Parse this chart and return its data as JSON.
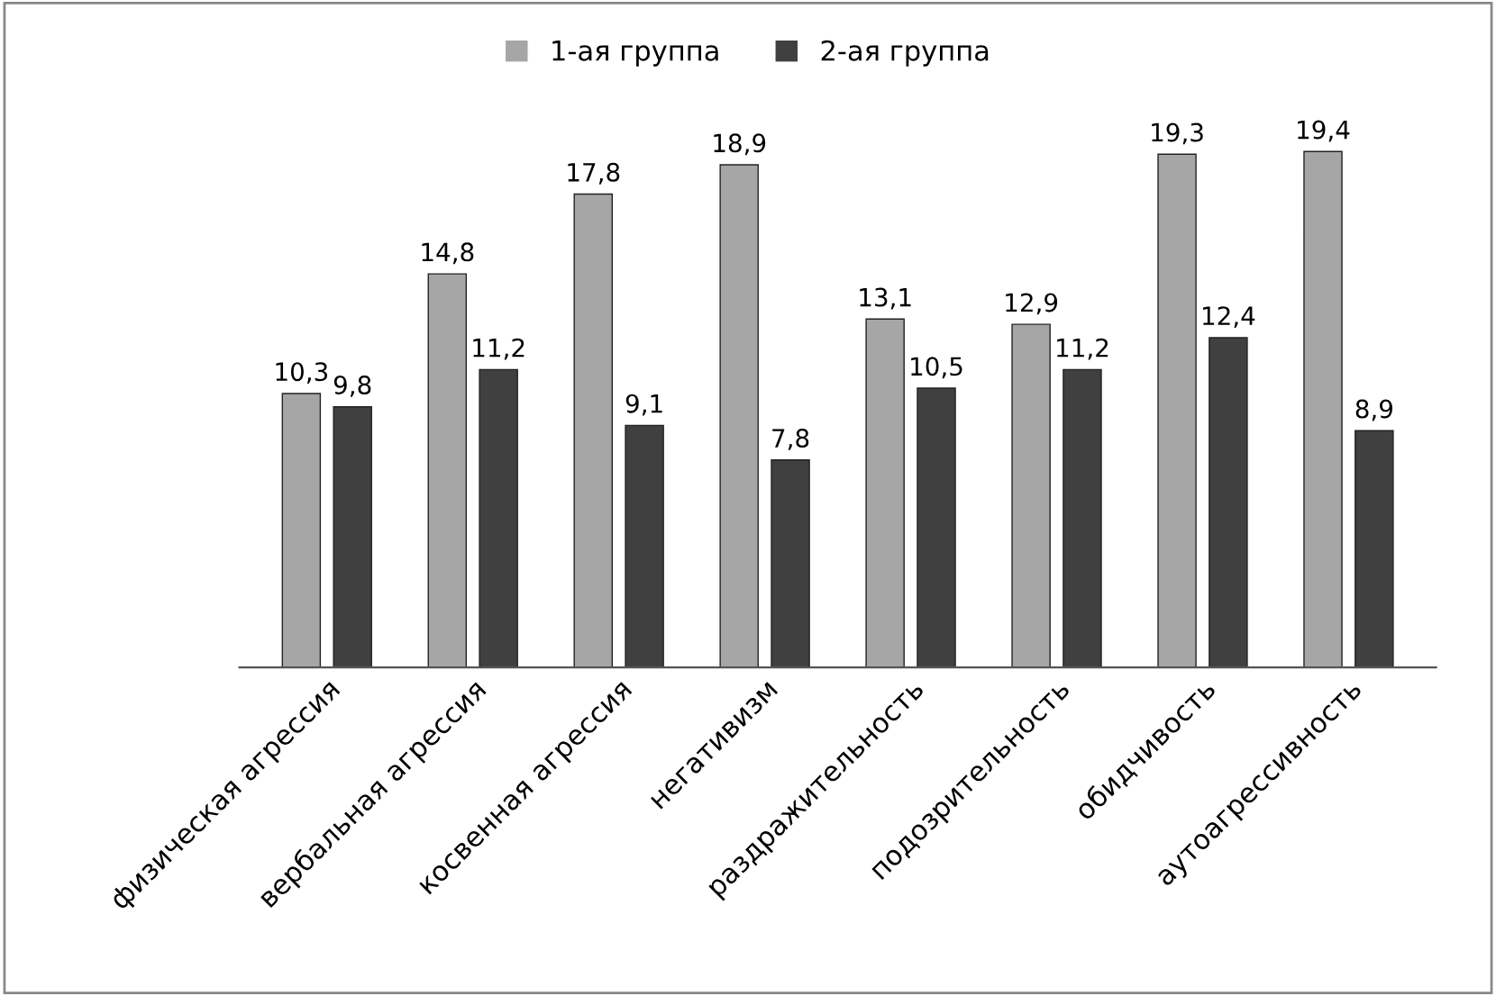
{
  "chart_data": {
    "type": "bar",
    "categories": [
      "физическая агрессия",
      "вербальная агрессия",
      "косвенная агрессия",
      "негативизм",
      "раздражительность",
      "подозрительность",
      "обидчивость",
      "аутоагрессивность"
    ],
    "series": [
      {
        "name": "1-ая группа",
        "color": "#a6a6a6",
        "values": [
          10.3,
          14.8,
          17.8,
          18.9,
          13.1,
          12.9,
          19.3,
          19.4
        ],
        "value_labels": [
          "10,3",
          "14,8",
          "17,8",
          "18,9",
          "13,1",
          "12,9",
          "19,3",
          "19,4"
        ]
      },
      {
        "name": "2-ая группа",
        "color": "#404040",
        "values": [
          9.8,
          11.2,
          9.1,
          7.8,
          10.5,
          11.2,
          12.4,
          8.9
        ],
        "value_labels": [
          "9,8",
          "11,2",
          "9,1",
          "7,8",
          "10,5",
          "11,2",
          "12,4",
          "8,9"
        ]
      }
    ],
    "legend": "top"
  }
}
